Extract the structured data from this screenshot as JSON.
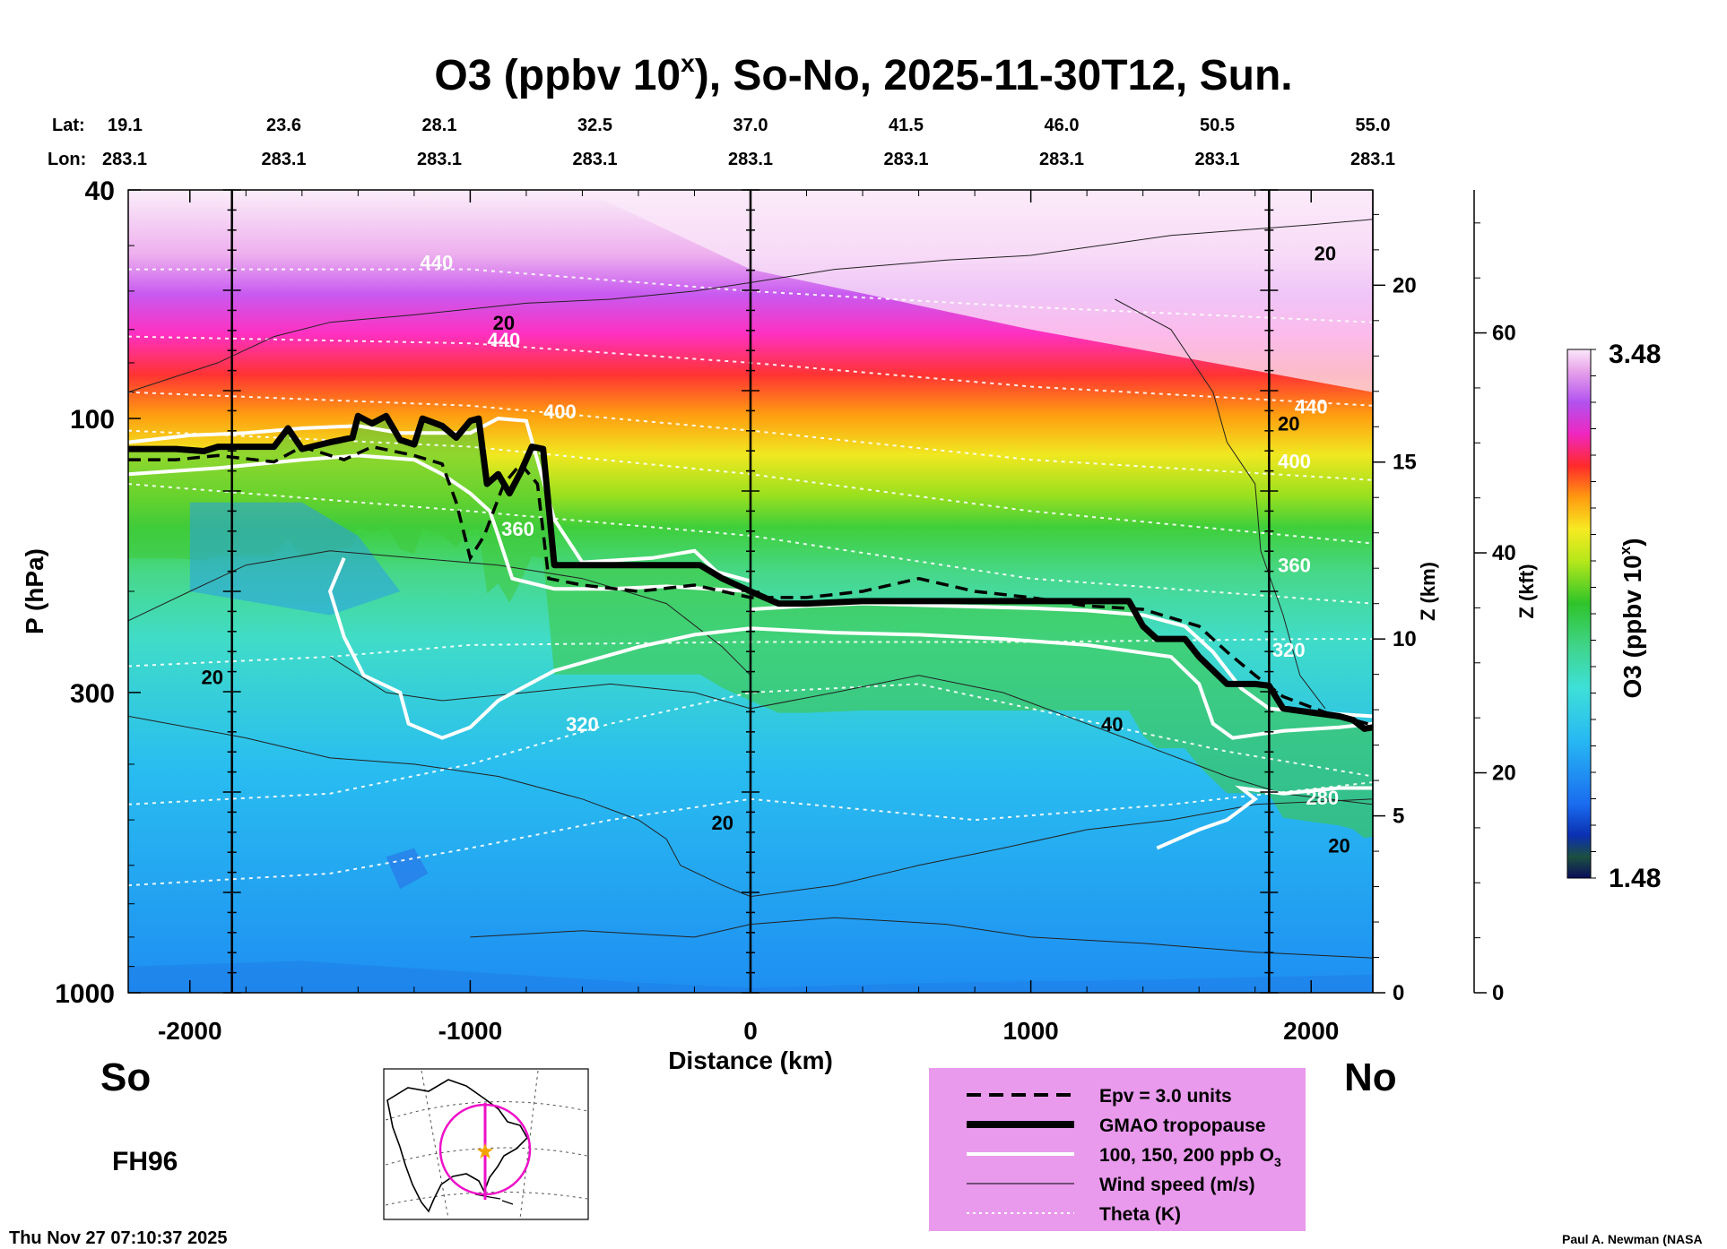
{
  "chart_data": {
    "type": "heatmap",
    "title_main": "O3 (ppbv 10",
    "title_sup": "x",
    "title_rest": "), So-No, 2025-11-30T12, Sun.",
    "header": {
      "lat_label": "Lat:",
      "lon_label": "Lon:",
      "lats": [
        "19.1",
        "23.6",
        "28.1",
        "32.5",
        "37.0",
        "41.5",
        "46.0",
        "50.5",
        "55.0"
      ],
      "lons": [
        "283.1",
        "283.1",
        "283.1",
        "283.1",
        "283.1",
        "283.1",
        "283.1",
        "283.1",
        "283.1"
      ],
      "distances": [
        -2220,
        -1665,
        -1110,
        -555,
        0,
        555,
        1110,
        1665,
        2220
      ]
    },
    "x_axis": {
      "label": "Distance (km)",
      "range": [
        -2220,
        2220
      ],
      "ticks": [
        -2000,
        -1000,
        0,
        1000,
        2000
      ],
      "tick_labels": [
        "-2000",
        "-1000",
        "0",
        "1000",
        "2000"
      ]
    },
    "y_axis": {
      "label": "P (hPa)",
      "scale": "log",
      "range": [
        1000,
        40
      ],
      "ticks": [
        40,
        100,
        300,
        1000
      ],
      "tick_labels": [
        "40",
        "100",
        "300",
        "1000"
      ]
    },
    "z_km_axis": {
      "label": "Z (km)",
      "ticks": [
        0,
        5,
        10,
        15,
        20
      ],
      "tick_labels": [
        "0",
        "5",
        "10",
        "15",
        "20"
      ]
    },
    "z_kft_axis": {
      "label": "Z (kft)",
      "ticks": [
        0,
        20,
        40,
        60
      ],
      "tick_labels": [
        "0",
        "20",
        "40",
        "60"
      ]
    },
    "colorbar": {
      "label": "O3 (ppbv 10",
      "label_sup": "x",
      "label_end": ")",
      "min": 1.48,
      "max": 3.48,
      "min_label": "1.48",
      "max_label": "3.48"
    },
    "vertical_markers_km": [
      -1850,
      0,
      1850
    ],
    "tropopause_hpa": [
      [
        -2220,
        113
      ],
      [
        -2050,
        113
      ],
      [
        -1950,
        114
      ],
      [
        -1900,
        112
      ],
      [
        -1700,
        112
      ],
      [
        -1650,
        104
      ],
      [
        -1600,
        113
      ],
      [
        -1500,
        110
      ],
      [
        -1420,
        108
      ],
      [
        -1400,
        99
      ],
      [
        -1350,
        102
      ],
      [
        -1300,
        99
      ],
      [
        -1250,
        109
      ],
      [
        -1200,
        111
      ],
      [
        -1170,
        100
      ],
      [
        -1100,
        103
      ],
      [
        -1050,
        108
      ],
      [
        -1000,
        101
      ],
      [
        -970,
        100
      ],
      [
        -940,
        130
      ],
      [
        -900,
        125
      ],
      [
        -860,
        135
      ],
      [
        -820,
        124
      ],
      [
        -780,
        112
      ],
      [
        -740,
        113
      ],
      [
        -700,
        180
      ],
      [
        -400,
        180
      ],
      [
        -180,
        180
      ],
      [
        -100,
        190
      ],
      [
        0,
        200
      ],
      [
        50,
        205
      ],
      [
        100,
        210
      ],
      [
        200,
        210
      ],
      [
        400,
        208
      ],
      [
        700,
        208
      ],
      [
        1000,
        208
      ],
      [
        1200,
        208
      ],
      [
        1350,
        208
      ],
      [
        1400,
        230
      ],
      [
        1450,
        242
      ],
      [
        1550,
        242
      ],
      [
        1600,
        260
      ],
      [
        1700,
        290
      ],
      [
        1800,
        290
      ],
      [
        1850,
        292
      ],
      [
        1900,
        320
      ],
      [
        2000,
        325
      ],
      [
        2100,
        330
      ],
      [
        2150,
        335
      ],
      [
        2190,
        347
      ],
      [
        2220,
        345
      ]
    ],
    "epv_hpa": [
      [
        -2220,
        118
      ],
      [
        -2050,
        118
      ],
      [
        -1900,
        116
      ],
      [
        -1700,
        119
      ],
      [
        -1600,
        112
      ],
      [
        -1450,
        118
      ],
      [
        -1350,
        112
      ],
      [
        -1200,
        116
      ],
      [
        -1100,
        120
      ],
      [
        -1050,
        140
      ],
      [
        -1000,
        175
      ],
      [
        -950,
        160
      ],
      [
        -880,
        130
      ],
      [
        -820,
        120
      ],
      [
        -760,
        130
      ],
      [
        -720,
        190
      ],
      [
        -600,
        195
      ],
      [
        -400,
        200
      ],
      [
        -200,
        195
      ],
      [
        0,
        205
      ],
      [
        200,
        205
      ],
      [
        400,
        200
      ],
      [
        600,
        190
      ],
      [
        800,
        200
      ],
      [
        1000,
        205
      ],
      [
        1200,
        212
      ],
      [
        1400,
        215
      ],
      [
        1600,
        230
      ],
      [
        1700,
        255
      ],
      [
        1800,
        280
      ],
      [
        1900,
        305
      ],
      [
        2050,
        325
      ],
      [
        2220,
        342
      ]
    ],
    "o3_contours_hpa": [
      [
        [
          -2220,
          110
        ],
        [
          -2000,
          107
        ],
        [
          -1800,
          106
        ],
        [
          -1600,
          104
        ],
        [
          -1400,
          103
        ],
        [
          -1250,
          106
        ],
        [
          -1000,
          106
        ],
        [
          -900,
          100
        ],
        [
          -800,
          101
        ],
        [
          -700,
          150
        ],
        [
          -600,
          178
        ],
        [
          -350,
          175
        ],
        [
          -200,
          170
        ],
        [
          -120,
          185
        ],
        [
          0,
          192
        ]
      ],
      [
        [
          -2220,
          125
        ],
        [
          -1900,
          122
        ],
        [
          -1600,
          118
        ],
        [
          -1400,
          116
        ],
        [
          -1200,
          118
        ],
        [
          -1100,
          125
        ],
        [
          -1000,
          135
        ],
        [
          -930,
          145
        ],
        [
          -900,
          160
        ],
        [
          -850,
          190
        ],
        [
          -700,
          198
        ],
        [
          -500,
          198
        ],
        [
          -300,
          196
        ],
        [
          0,
          200
        ]
      ],
      [
        [
          0,
          215
        ],
        [
          200,
          212
        ],
        [
          400,
          210
        ],
        [
          700,
          212
        ],
        [
          1000,
          214
        ],
        [
          1200,
          216
        ],
        [
          1400,
          220
        ],
        [
          1550,
          230
        ],
        [
          1650,
          255
        ],
        [
          1750,
          295
        ],
        [
          1850,
          320
        ],
        [
          2000,
          325
        ],
        [
          2220,
          330
        ]
      ],
      [
        [
          -1450,
          175
        ],
        [
          -1500,
          200
        ],
        [
          -1450,
          240
        ],
        [
          -1380,
          280
        ],
        [
          -1250,
          300
        ],
        [
          -1220,
          340
        ],
        [
          -1100,
          360
        ],
        [
          -1000,
          345
        ],
        [
          -900,
          310
        ],
        [
          -700,
          275
        ],
        [
          -400,
          250
        ],
        [
          -200,
          238
        ],
        [
          0,
          232
        ],
        [
          300,
          236
        ],
        [
          600,
          238
        ],
        [
          900,
          242
        ],
        [
          1200,
          248
        ],
        [
          1500,
          260
        ],
        [
          1600,
          290
        ],
        [
          1650,
          340
        ],
        [
          1720,
          360
        ],
        [
          1900,
          350
        ],
        [
          2100,
          345
        ],
        [
          2220,
          340
        ]
      ],
      [
        [
          1450,
          560
        ],
        [
          1600,
          520
        ],
        [
          1700,
          500
        ],
        [
          1800,
          460
        ],
        [
          1750,
          440
        ],
        [
          1900,
          450
        ],
        [
          2100,
          440
        ],
        [
          2220,
          440
        ]
      ]
    ],
    "wind_contours_hpa": [
      [
        [
          -2220,
          90
        ],
        [
          -1900,
          80
        ],
        [
          -1700,
          72
        ],
        [
          -1500,
          68
        ],
        [
          -1200,
          66
        ],
        [
          -800,
          63
        ],
        [
          -500,
          62
        ],
        [
          -200,
          60
        ],
        [
          0,
          58
        ],
        [
          300,
          55
        ],
        [
          700,
          53
        ],
        [
          1000,
          52
        ],
        [
          1500,
          48
        ],
        [
          2000,
          46
        ],
        [
          2220,
          45
        ]
      ],
      [
        [
          -2220,
          225
        ],
        [
          -2000,
          200
        ],
        [
          -1800,
          180
        ],
        [
          -1500,
          170
        ],
        [
          -1200,
          175
        ],
        [
          -900,
          180
        ],
        [
          -600,
          190
        ],
        [
          -300,
          210
        ],
        [
          -100,
          250
        ],
        [
          0,
          280
        ]
      ],
      [
        [
          -1500,
          260
        ],
        [
          -1300,
          300
        ],
        [
          -1100,
          310
        ],
        [
          -800,
          300
        ],
        [
          -500,
          290
        ],
        [
          -200,
          300
        ],
        [
          0,
          320
        ],
        [
          300,
          300
        ],
        [
          600,
          280
        ],
        [
          900,
          300
        ],
        [
          1200,
          340
        ],
        [
          1400,
          370
        ],
        [
          1700,
          420
        ],
        [
          1900,
          450
        ],
        [
          2220,
          470
        ]
      ],
      [
        [
          -2220,
          330
        ],
        [
          -1800,
          360
        ],
        [
          -1500,
          390
        ],
        [
          -1200,
          400
        ],
        [
          -900,
          420
        ],
        [
          -600,
          460
        ],
        [
          -400,
          500
        ],
        [
          -300,
          540
        ],
        [
          -250,
          600
        ],
        [
          -100,
          650
        ],
        [
          0,
          680
        ],
        [
          300,
          650
        ],
        [
          600,
          600
        ],
        [
          900,
          560
        ],
        [
          1200,
          520
        ],
        [
          1500,
          500
        ],
        [
          1800,
          470
        ],
        [
          2220,
          460
        ]
      ],
      [
        [
          1300,
          62
        ],
        [
          1500,
          70
        ],
        [
          1650,
          90
        ],
        [
          1700,
          110
        ],
        [
          1800,
          130
        ],
        [
          1820,
          170
        ],
        [
          1900,
          220
        ],
        [
          1960,
          280
        ],
        [
          2050,
          320
        ]
      ],
      [
        [
          -1000,
          800
        ],
        [
          -600,
          780
        ],
        [
          -200,
          800
        ],
        [
          0,
          760
        ],
        [
          300,
          740
        ],
        [
          700,
          760
        ],
        [
          1000,
          800
        ],
        [
          1400,
          820
        ],
        [
          1800,
          850
        ],
        [
          2220,
          870
        ]
      ]
    ],
    "theta_contours_hpa": [
      [
        [
          -2220,
          55
        ],
        [
          -1000,
          55
        ],
        [
          0,
          60
        ],
        [
          1000,
          64
        ],
        [
          2220,
          68
        ]
      ],
      [
        [
          -2220,
          72
        ],
        [
          -1000,
          74
        ],
        [
          0,
          80
        ],
        [
          1000,
          88
        ],
        [
          2220,
          95
        ]
      ],
      [
        [
          -2220,
          90
        ],
        [
          -1000,
          95
        ],
        [
          0,
          105
        ],
        [
          1000,
          118
        ],
        [
          2220,
          128
        ]
      ],
      [
        [
          -2220,
          105
        ],
        [
          -1000,
          112
        ],
        [
          0,
          125
        ],
        [
          1000,
          145
        ],
        [
          2220,
          165
        ]
      ],
      [
        [
          -2220,
          130
        ],
        [
          -1000,
          145
        ],
        [
          0,
          160
        ],
        [
          1000,
          190
        ],
        [
          2220,
          210
        ]
      ],
      [
        [
          -2220,
          270
        ],
        [
          -1500,
          260
        ],
        [
          -1000,
          248
        ],
        [
          0,
          245
        ],
        [
          1000,
          245
        ],
        [
          2000,
          242
        ],
        [
          2220,
          242
        ]
      ],
      [
        [
          -2220,
          470
        ],
        [
          -1500,
          450
        ],
        [
          -1000,
          400
        ],
        [
          -500,
          340
        ],
        [
          0,
          300
        ],
        [
          600,
          290
        ],
        [
          1000,
          320
        ],
        [
          1700,
          380
        ],
        [
          2220,
          420
        ]
      ],
      [
        [
          -2220,
          650
        ],
        [
          -1500,
          620
        ],
        [
          -1000,
          560
        ],
        [
          -500,
          500
        ],
        [
          0,
          460
        ],
        [
          800,
          500
        ],
        [
          1500,
          470
        ],
        [
          2220,
          430
        ]
      ]
    ],
    "contour_labels": [
      {
        "text": "440",
        "x": -1120,
        "y": 55,
        "color": "white"
      },
      {
        "text": "440",
        "x": -880,
        "y": 75,
        "color": "white"
      },
      {
        "text": "20",
        "x": -880,
        "y": 70,
        "color": "black"
      },
      {
        "text": "400",
        "x": -680,
        "y": 100,
        "color": "white"
      },
      {
        "text": "360",
        "x": -830,
        "y": 160,
        "color": "white"
      },
      {
        "text": "20",
        "x": -1920,
        "y": 290,
        "color": "black"
      },
      {
        "text": "320",
        "x": -600,
        "y": 350,
        "color": "white"
      },
      {
        "text": "20",
        "x": -100,
        "y": 520,
        "color": "black"
      },
      {
        "text": "40",
        "x": 1290,
        "y": 350,
        "color": "black"
      },
      {
        "text": "20",
        "x": 2050,
        "y": 53,
        "color": "black"
      },
      {
        "text": "20",
        "x": 1920,
        "y": 105,
        "color": "black"
      },
      {
        "text": "440",
        "x": 2000,
        "y": 98,
        "color": "white"
      },
      {
        "text": "400",
        "x": 1940,
        "y": 122,
        "color": "white"
      },
      {
        "text": "360",
        "x": 1940,
        "y": 185,
        "color": "white"
      },
      {
        "text": "320",
        "x": 1920,
        "y": 260,
        "color": "white"
      },
      {
        "text": "280",
        "x": 2040,
        "y": 470,
        "color": "white"
      },
      {
        "text": "20",
        "x": 2100,
        "y": 570,
        "color": "black"
      }
    ]
  },
  "labels": {
    "south": "So",
    "north": "No",
    "forecast_hour": "FH96",
    "timestamp": "Thu Nov 27 07:10:37 2025",
    "credit": "Paul A. Newman (NASA"
  },
  "legend": {
    "items": [
      {
        "style": "dashed",
        "label": "Epv = 3.0 units"
      },
      {
        "style": "thick",
        "label": "GMAO tropopause"
      },
      {
        "style": "white",
        "label": "100, 150, 200 ppb O"
      },
      {
        "style": "thin",
        "label": "Wind speed (m/s)"
      },
      {
        "style": "dotted",
        "label": "Theta (K)"
      }
    ],
    "o3_sub": "3",
    "background": "#e99aed"
  },
  "colors": {
    "map_line": "#ee10c8",
    "map_star": "#f5a300"
  }
}
